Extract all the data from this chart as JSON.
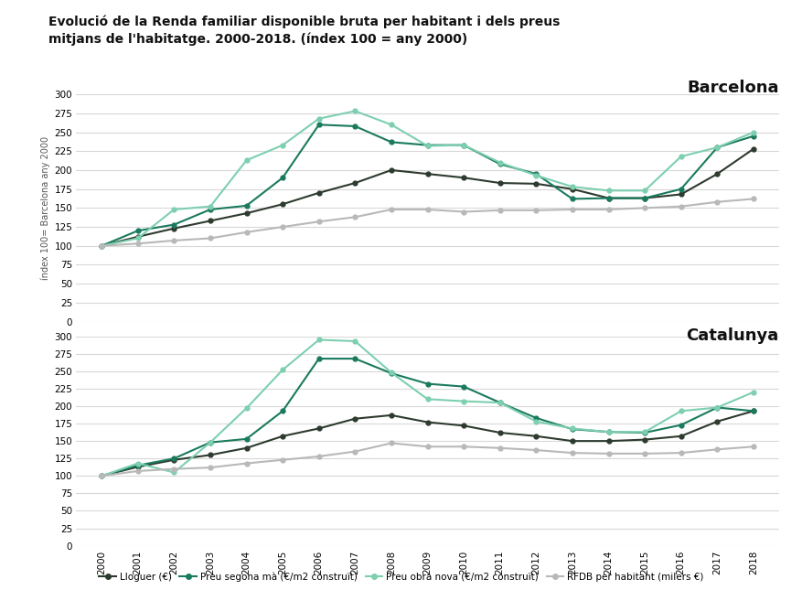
{
  "title_line1": "Evolució de la Renda familiar disponible bruta per habitant i dels preus",
  "title_line2": "mitjans de l'habitatge. 2000-2018. (índex 100 = any 2000)",
  "ylabel": "índex 100= Barcelona any 2000",
  "label_barcelona": "Barcelona",
  "label_catalunya": "Catalunya",
  "years": [
    2000,
    2001,
    2002,
    2003,
    2004,
    2005,
    2006,
    2007,
    2008,
    2009,
    2010,
    2011,
    2012,
    2013,
    2014,
    2015,
    2016,
    2017,
    2018
  ],
  "barcelona": {
    "lloguer": [
      100,
      112,
      123,
      133,
      143,
      155,
      170,
      183,
      200,
      195,
      190,
      183,
      182,
      175,
      163,
      163,
      168,
      195,
      228
    ],
    "segona_ma": [
      100,
      120,
      128,
      148,
      153,
      190,
      260,
      258,
      237,
      233,
      233,
      208,
      195,
      162,
      163,
      163,
      175,
      230,
      245
    ],
    "obra_nova": [
      100,
      110,
      148,
      152,
      213,
      233,
      268,
      278,
      260,
      232,
      233,
      210,
      193,
      178,
      173,
      173,
      218,
      230,
      250
    ],
    "rfdb": [
      100,
      103,
      107,
      110,
      118,
      125,
      132,
      138,
      148,
      148,
      145,
      147,
      147,
      148,
      148,
      150,
      152,
      158,
      162
    ]
  },
  "catalunya": {
    "lloguer": [
      100,
      113,
      123,
      130,
      140,
      157,
      168,
      182,
      187,
      177,
      172,
      162,
      157,
      150,
      150,
      152,
      157,
      178,
      193
    ],
    "segona_ma": [
      100,
      115,
      125,
      148,
      153,
      193,
      268,
      268,
      247,
      232,
      228,
      205,
      183,
      167,
      163,
      162,
      173,
      198,
      193
    ],
    "obra_nova": [
      100,
      118,
      105,
      148,
      197,
      252,
      295,
      293,
      248,
      210,
      207,
      205,
      178,
      168,
      163,
      163,
      193,
      198,
      220
    ],
    "rfdb": [
      100,
      107,
      110,
      112,
      118,
      123,
      128,
      135,
      147,
      142,
      142,
      140,
      137,
      133,
      132,
      132,
      133,
      138,
      142
    ]
  },
  "colors": {
    "lloguer": "#2d3a2e",
    "seconda_ma": "#1a7a5e",
    "obra_nova": "#7dcfb0",
    "rfdb": "#b8b8b8"
  },
  "legend_labels": [
    "Lloguer (€)",
    "Preu segona mà (€/m2 construït)",
    "Preu obra nova (€/m2 construït)",
    "RFDB per habitant (milers €)"
  ],
  "ylim": [
    0,
    300
  ],
  "yticks": [
    0,
    25,
    50,
    75,
    100,
    125,
    150,
    175,
    200,
    225,
    250,
    275,
    300
  ],
  "background_color": "#ffffff",
  "grid_color": "#d8d8d8"
}
